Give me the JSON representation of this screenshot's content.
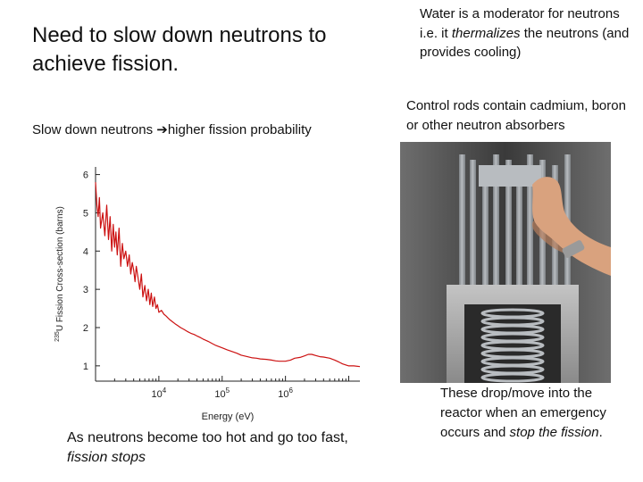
{
  "title": "Need to slow down neutrons to achieve fission.",
  "slow_line": {
    "left": "Slow down neutrons ",
    "arrow": "➔",
    "right": "higher fission probability"
  },
  "water": {
    "before": "Water is a moderator for neutrons i.e. it ",
    "em": "thermalizes",
    "after": " the neutrons (and provides cooling)"
  },
  "control_rods": "Control rods contain cadmium, boron or other neutron absorbers",
  "too_fast": {
    "before": "As neutrons become too hot and go too fast, ",
    "em": "fission stops"
  },
  "drop": {
    "before": "These drop/move into the reactor when an emergency occurs and ",
    "em": "stop the fission",
    "after": "."
  },
  "chart_data": {
    "type": "line",
    "title": "",
    "xlabel": "Energy (eV)",
    "ylabel_sup": "235",
    "ylabel": "U Fission Cross-section (barns)",
    "xscale": "log",
    "xlim": [
      1000,
      15000000
    ],
    "ylim": [
      0.6,
      6.2
    ],
    "yticks": [
      1,
      2,
      3,
      4,
      5,
      6
    ],
    "xticks": [
      {
        "value": 10000,
        "base": "10",
        "exp": "4"
      },
      {
        "value": 100000,
        "base": "10",
        "exp": "5"
      },
      {
        "value": 1000000,
        "base": "10",
        "exp": "6"
      }
    ],
    "grid": false,
    "line_color": "#cc1111",
    "series": [
      {
        "x": [
          1000,
          1050,
          1100,
          1150,
          1200,
          1300,
          1400,
          1500,
          1600,
          1700,
          1800,
          1900,
          2000,
          2100,
          2200,
          2350,
          2500,
          2650,
          2800,
          3000,
          3200,
          3400,
          3600,
          3800,
          4000,
          4200,
          4400,
          4700,
          5000,
          5300,
          5600,
          6000,
          6400,
          6800,
          7200,
          7600,
          8000,
          8500,
          9000,
          9500,
          10000,
          11000,
          12000,
          13000,
          14000,
          15000,
          16500,
          18000,
          20000,
          22000,
          25000,
          28000,
          32000,
          36000,
          40000,
          45000,
          50000,
          60000,
          70000,
          80000,
          90000,
          100000,
          120000,
          140000,
          170000,
          200000,
          250000,
          300000,
          350000,
          400000,
          500000,
          600000,
          700000,
          800000,
          1000000,
          1200000,
          1400000,
          1700000,
          2000000,
          2300000,
          2600000,
          3000000,
          3500000,
          4000000,
          5000000,
          6000000,
          7000000,
          8000000,
          10000000,
          12000000,
          15000000
        ],
        "y": [
          5.8,
          5.2,
          4.9,
          5.4,
          4.6,
          5.0,
          4.4,
          5.2,
          4.3,
          4.9,
          4.0,
          4.7,
          4.1,
          4.5,
          3.9,
          4.6,
          3.6,
          4.2,
          3.8,
          4.0,
          3.6,
          3.9,
          3.4,
          3.7,
          3.5,
          3.2,
          3.6,
          3.3,
          3.0,
          3.4,
          2.8,
          3.1,
          2.7,
          3.0,
          2.6,
          2.9,
          2.55,
          2.8,
          2.5,
          2.6,
          2.4,
          2.45,
          2.35,
          2.3,
          2.25,
          2.2,
          2.15,
          2.1,
          2.05,
          2.0,
          1.95,
          1.9,
          1.85,
          1.82,
          1.78,
          1.74,
          1.7,
          1.64,
          1.58,
          1.53,
          1.5,
          1.47,
          1.42,
          1.38,
          1.33,
          1.28,
          1.24,
          1.21,
          1.2,
          1.18,
          1.17,
          1.15,
          1.13,
          1.12,
          1.12,
          1.15,
          1.2,
          1.22,
          1.26,
          1.3,
          1.3,
          1.27,
          1.24,
          1.23,
          1.2,
          1.15,
          1.1,
          1.05,
          1.0,
          1.0,
          0.98
        ]
      }
    ]
  },
  "photo": {
    "colors": {
      "background": "#3a3a3a",
      "background_light": "#6e6e6e",
      "rods": "#b8bcc0",
      "rods_dark": "#7d8185",
      "block": "#c4c4c4",
      "block_dark": "#8a8a8a",
      "opening": "#2a2a2a",
      "skin": "#d9a27e",
      "skin_shadow": "#b77d5b",
      "watch": "#9a9a9a"
    }
  }
}
